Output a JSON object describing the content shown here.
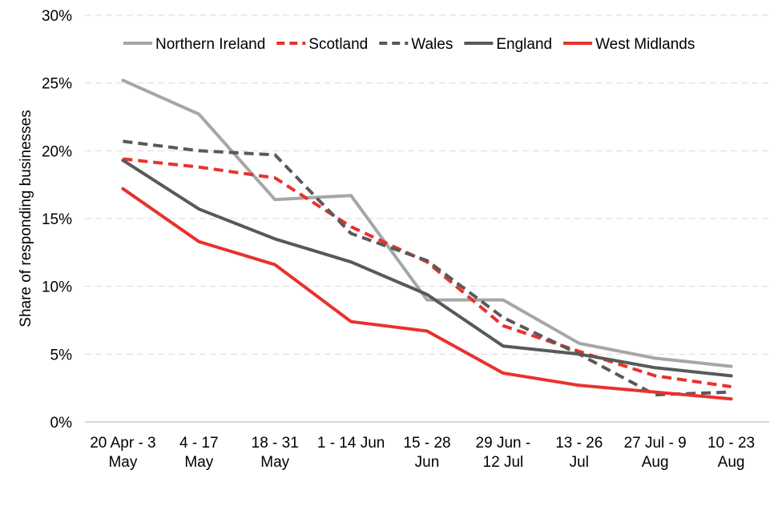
{
  "chart_data": {
    "type": "line",
    "title": "",
    "xlabel": "",
    "ylabel": "Share of responding businesses",
    "ylim": [
      0,
      30
    ],
    "yticks": [
      0,
      5,
      10,
      15,
      20,
      25,
      30
    ],
    "ytick_labels": [
      "0%",
      "5%",
      "10%",
      "15%",
      "20%",
      "25%",
      "30%"
    ],
    "grid": true,
    "legend_position": "top",
    "categories": [
      [
        "20 Apr - 3",
        "May"
      ],
      [
        "4 - 17",
        "May"
      ],
      [
        "18 - 31",
        "May"
      ],
      [
        "1 - 14 Jun"
      ],
      [
        "15 - 28",
        "Jun"
      ],
      [
        "29 Jun -",
        "12 Jul"
      ],
      [
        "13 - 26",
        "Jul"
      ],
      [
        "27 Jul - 9",
        "Aug"
      ],
      [
        "10 - 23",
        "Aug"
      ]
    ],
    "series": [
      {
        "name": "Northern Ireland",
        "color": "#a6a6a6",
        "dash": false,
        "values": [
          25.2,
          22.7,
          16.4,
          16.7,
          9.0,
          9.0,
          5.8,
          4.7,
          4.1
        ]
      },
      {
        "name": "Scotland",
        "color": "#e8322d",
        "dash": true,
        "values": [
          19.4,
          18.8,
          18.0,
          14.4,
          11.8,
          7.1,
          5.2,
          3.4,
          2.6
        ]
      },
      {
        "name": "Wales",
        "color": "#595959",
        "dash": true,
        "values": [
          20.7,
          20.0,
          19.7,
          13.9,
          11.9,
          7.7,
          5.0,
          2.0,
          2.2
        ]
      },
      {
        "name": "England",
        "color": "#595959",
        "dash": false,
        "values": [
          19.3,
          15.7,
          13.5,
          11.8,
          9.4,
          5.6,
          5.0,
          4.0,
          3.4
        ]
      },
      {
        "name": "West Midlands",
        "color": "#e8322d",
        "dash": false,
        "values": [
          17.2,
          13.3,
          11.6,
          7.4,
          6.7,
          3.6,
          2.7,
          2.2,
          1.7
        ]
      }
    ]
  }
}
